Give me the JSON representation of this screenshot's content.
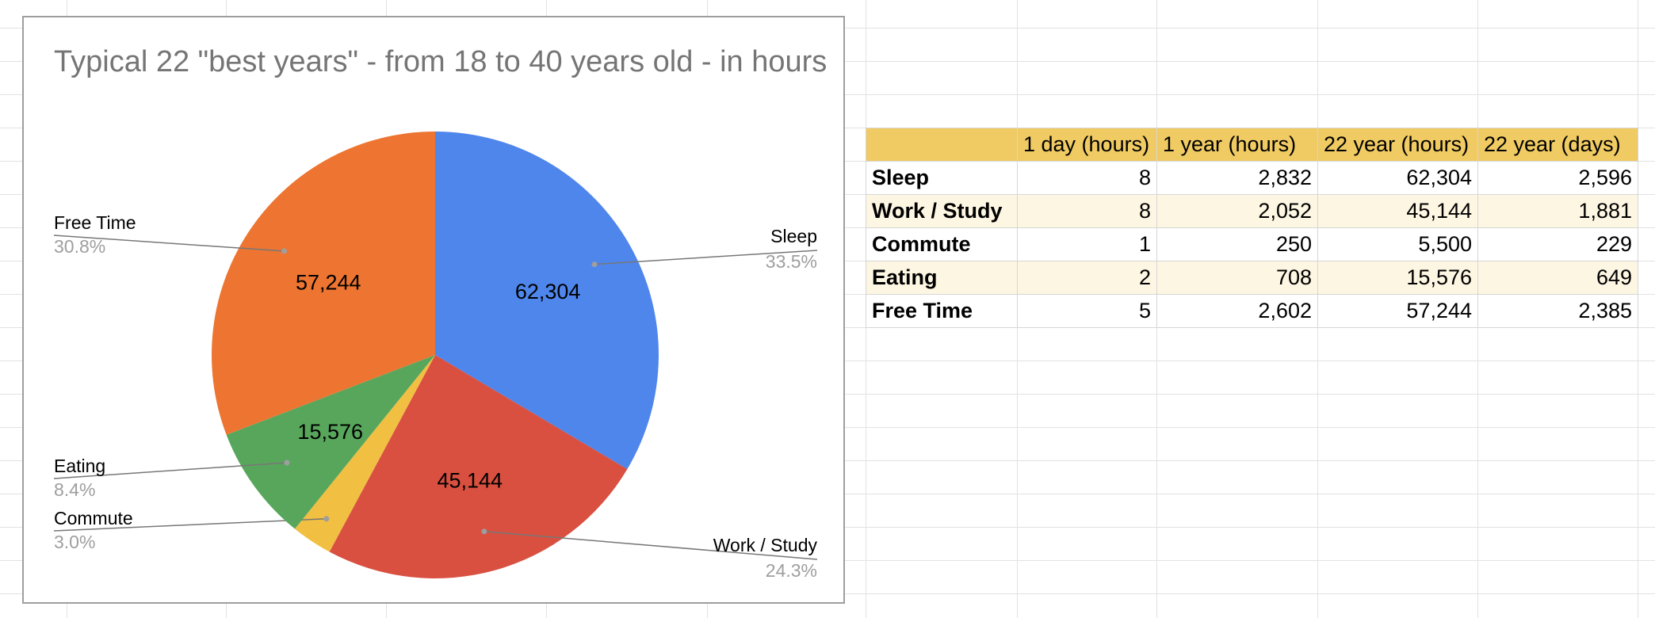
{
  "chart_data": {
    "type": "pie",
    "title": "Typical 22 \"best years\" - from 18 to 40 years old - in hours",
    "slices": [
      {
        "label": "Sleep",
        "value": 62304,
        "value_label": "62,304",
        "percent_label": "33.5%",
        "color": "#4f86ec"
      },
      {
        "label": "Work / Study",
        "value": 45144,
        "value_label": "45,144",
        "percent_label": "24.3%",
        "color": "#d95040"
      },
      {
        "label": "Commute",
        "value": 5500,
        "value_label": "",
        "percent_label": "3.0%",
        "color": "#f1bf42"
      },
      {
        "label": "Eating",
        "value": 15576,
        "value_label": "15,576",
        "percent_label": "8.4%",
        "color": "#58a65c"
      },
      {
        "label": "Free Time",
        "value": 57244,
        "value_label": "57,244",
        "percent_label": "30.8%",
        "color": "#ed7531"
      }
    ]
  },
  "table": {
    "headers": [
      "",
      "1 day (hours)",
      "1 year (hours)",
      "22 year (hours)",
      "22 year (days)"
    ],
    "rows": [
      [
        "Sleep",
        "8",
        "2,832",
        "62,304",
        "2,596"
      ],
      [
        "Work / Study",
        "8",
        "2,052",
        "45,144",
        "1,881"
      ],
      [
        "Commute",
        "1",
        "250",
        "5,500",
        "229"
      ],
      [
        "Eating",
        "2",
        "708",
        "15,576",
        "649"
      ],
      [
        "Free Time",
        "5",
        "2,602",
        "57,244",
        "2,385"
      ]
    ]
  }
}
